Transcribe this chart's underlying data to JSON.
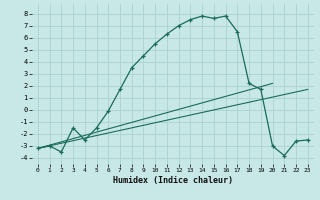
{
  "xlabel": "Humidex (Indice chaleur)",
  "bg_color": "#c8e8e8",
  "grid_color": "#afd4d4",
  "line_color": "#1a6b5a",
  "xlim": [
    -0.5,
    23.5
  ],
  "ylim": [
    -4.5,
    8.8
  ],
  "xticks": [
    0,
    1,
    2,
    3,
    4,
    5,
    6,
    7,
    8,
    9,
    10,
    11,
    12,
    13,
    14,
    15,
    16,
    17,
    18,
    19,
    20,
    21,
    22,
    23
  ],
  "yticks": [
    -4,
    -3,
    -2,
    -1,
    0,
    1,
    2,
    3,
    4,
    5,
    6,
    7,
    8
  ],
  "curve1_x": [
    0,
    1,
    2,
    3,
    4,
    5,
    6,
    7,
    8,
    9,
    10,
    11,
    12,
    13,
    14,
    15,
    16,
    17,
    18,
    19,
    20,
    21,
    22,
    23
  ],
  "curve1_y": [
    -3.2,
    -3.0,
    -3.5,
    -1.5,
    -2.5,
    -1.5,
    -0.1,
    1.7,
    3.5,
    4.5,
    5.5,
    6.3,
    7.0,
    7.5,
    7.8,
    7.6,
    7.8,
    6.5,
    2.2,
    1.7,
    -3.0,
    -3.8,
    -2.6,
    -2.5
  ],
  "line2_x": [
    0,
    20
  ],
  "line2_y": [
    -3.2,
    2.2
  ],
  "line3_x": [
    0,
    23
  ],
  "line3_y": [
    -3.2,
    1.7
  ]
}
